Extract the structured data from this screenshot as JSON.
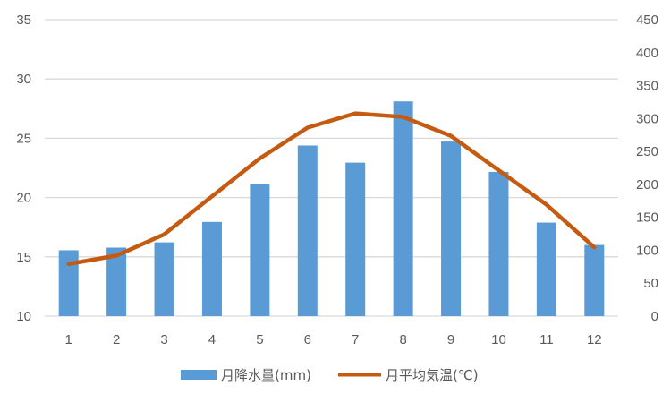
{
  "chart_data": {
    "type": "bar+line",
    "categories": [
      "1",
      "2",
      "3",
      "4",
      "5",
      "6",
      "7",
      "8",
      "9",
      "10",
      "11",
      "12"
    ],
    "series": [
      {
        "name": "月降水量(mm)",
        "type": "bar",
        "axis": "right",
        "color": "#5B9BD5",
        "values": [
          100,
          104,
          112,
          143,
          200,
          259,
          233,
          326,
          265,
          219,
          142,
          108
        ]
      },
      {
        "name": "月平均気温(℃)",
        "type": "line",
        "axis": "left",
        "color": "#C55A11",
        "values": [
          14.4,
          15.1,
          16.9,
          20.1,
          23.3,
          25.9,
          27.1,
          26.8,
          25.2,
          22.3,
          19.4,
          15.8
        ]
      }
    ],
    "left_axis": {
      "ylim": [
        10,
        35
      ],
      "ticks": [
        "10",
        "15",
        "20",
        "25",
        "30",
        "35"
      ]
    },
    "right_axis": {
      "ylim": [
        0,
        450
      ],
      "ticks": [
        "0",
        "50",
        "100",
        "150",
        "200",
        "250",
        "300",
        "350",
        "400",
        "450"
      ]
    },
    "grid": true,
    "legend": "bottom"
  }
}
